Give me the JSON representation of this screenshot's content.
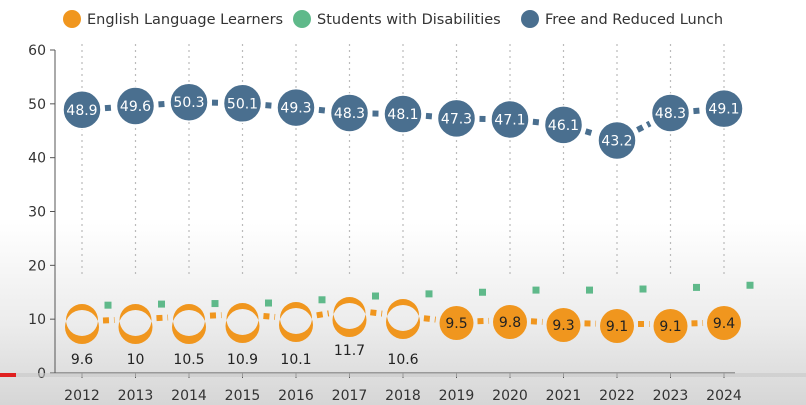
{
  "colors": {
    "ell": "#f0961e",
    "swd": "#5fb98a",
    "frl": "#4a6f8f",
    "grid": "#bbbbbb",
    "axis": "#555555"
  },
  "chart_data": {
    "type": "line",
    "title": "",
    "xlabel": "",
    "ylabel": "",
    "ylim": [
      0,
      60
    ],
    "yticks": [
      0,
      10,
      20,
      30,
      40,
      50,
      60
    ],
    "x": [
      "2012",
      "2013",
      "2014",
      "2015",
      "2016",
      "2017",
      "2018",
      "2019",
      "2020",
      "2021",
      "2022",
      "2023",
      "2024"
    ],
    "legend_position": "top",
    "grid": "vertical dotted",
    "series": [
      {
        "name": "English Language Learners",
        "color": "#f0961e",
        "values": [
          9.6,
          10,
          10.5,
          10.9,
          10.1,
          11.7,
          10.6,
          9.5,
          9.8,
          9.3,
          9.1,
          9.1,
          9.4
        ],
        "labels": [
          "9.6",
          "10",
          "10.5",
          "10.9",
          "10.1",
          "11.7",
          "10.6",
          "9.5",
          "9.8",
          "9.3",
          "9.1",
          "9.1",
          "9.4"
        ]
      },
      {
        "name": "Students with Disabilities",
        "color": "#5fb98a",
        "values": [
          12.6,
          12.8,
          12.9,
          13.0,
          13.6,
          14.3,
          14.7,
          15.0,
          15.4,
          15.4,
          15.6,
          15.9,
          16.3
        ],
        "labels": []
      },
      {
        "name": "Free and Reduced Lunch",
        "color": "#4a6f8f",
        "values": [
          48.9,
          49.6,
          50.3,
          50.1,
          49.3,
          48.3,
          48.1,
          47.3,
          47.1,
          46.1,
          43.2,
          48.3,
          49.1
        ],
        "labels": [
          "48.9",
          "49.6",
          "50.3",
          "50.1",
          "49.3",
          "48.3",
          "48.1",
          "47.3",
          "47.1",
          "46.1",
          "43.2",
          "48.3",
          "49.1"
        ]
      }
    ]
  }
}
